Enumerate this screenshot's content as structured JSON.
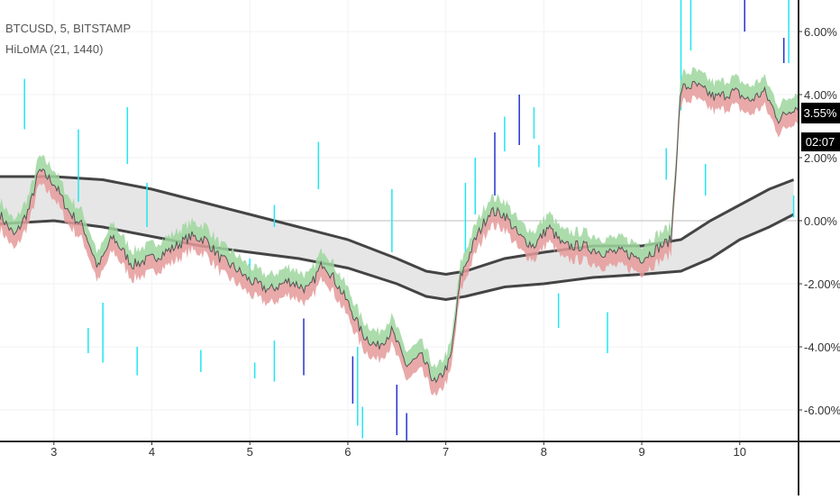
{
  "legend": {
    "symbol_line": "BTCUSD, 5, BITSTAMP",
    "indicator_line": "HiLoMA (21, 1440)"
  },
  "badges": {
    "price_change": "3.55%",
    "countdown": "02:07"
  },
  "colors": {
    "price_line": "#555555",
    "band_upper_fill": "#9ed69e",
    "band_lower_fill": "#e59a9a",
    "long_ma_fill": "#e6e6e6",
    "long_ma_lines": "#444444",
    "spike_cyan": "#22e6f0",
    "spike_blue": "#2233cc",
    "grid": "#f0f2f5",
    "badge_bg": "#000000",
    "badge_text": "#ffffff"
  },
  "chart_data": {
    "type": "line",
    "x_ticks": [
      "3",
      "4",
      "5",
      "6",
      "7",
      "8",
      "9",
      "10"
    ],
    "y_ticks": [
      "6.00%",
      "4.00%",
      "2.00%",
      "0.00%",
      "-2.00%",
      "-4.00%",
      "-6.00%"
    ],
    "y_tick_values": [
      6,
      4,
      2,
      0,
      -2,
      -4,
      -6
    ],
    "x_tick_values": [
      3,
      4,
      5,
      6,
      7,
      8,
      9,
      10
    ],
    "xlim": [
      2.45,
      10.6
    ],
    "ylim": [
      -7.0,
      7.0
    ],
    "series": [
      {
        "role": "price",
        "x": [
          2.45,
          2.6,
          2.75,
          2.85,
          3.0,
          3.15,
          3.3,
          3.45,
          3.6,
          3.8,
          4.0,
          4.2,
          4.4,
          4.55,
          4.7,
          4.85,
          5.0,
          5.2,
          5.4,
          5.6,
          5.75,
          5.85,
          6.0,
          6.15,
          6.3,
          6.45,
          6.6,
          6.75,
          6.9,
          7.05,
          7.15,
          7.3,
          7.45,
          7.6,
          7.75,
          7.9,
          8.05,
          8.2,
          8.4,
          8.6,
          8.8,
          9.0,
          9.2,
          9.3,
          9.4,
          9.55,
          9.75,
          9.95,
          10.1,
          10.25,
          10.4,
          10.55
        ],
        "y": [
          0.2,
          -0.5,
          0.4,
          1.6,
          1.2,
          0.3,
          -0.2,
          -1.5,
          -0.5,
          -1.4,
          -1.2,
          -0.9,
          -0.5,
          -0.6,
          -1.2,
          -1.5,
          -1.9,
          -2.2,
          -1.9,
          -2.2,
          -1.3,
          -1.8,
          -2.6,
          -3.6,
          -4.0,
          -3.5,
          -4.6,
          -4.3,
          -5.2,
          -4.4,
          -1.8,
          -0.6,
          0.3,
          0.2,
          -0.5,
          -0.8,
          -0.2,
          -0.8,
          -0.8,
          -1.0,
          -1.0,
          -1.2,
          -0.8,
          -0.6,
          4.2,
          4.3,
          3.9,
          4.1,
          3.8,
          4.1,
          3.2,
          3.6
        ]
      },
      {
        "role": "long_ma_upper",
        "x": [
          2.45,
          3.0,
          3.5,
          4.0,
          4.5,
          5.0,
          5.5,
          6.0,
          6.5,
          6.8,
          7.0,
          7.2,
          7.6,
          8.0,
          8.5,
          9.0,
          9.4,
          9.7,
          10.0,
          10.3,
          10.55
        ],
        "y": [
          1.4,
          1.4,
          1.3,
          1.0,
          0.6,
          0.2,
          -0.2,
          -0.6,
          -1.2,
          -1.6,
          -1.7,
          -1.6,
          -1.2,
          -1.0,
          -0.8,
          -0.8,
          -0.6,
          0.0,
          0.5,
          1.0,
          1.3
        ]
      },
      {
        "role": "long_ma_lower",
        "x": [
          2.45,
          3.0,
          3.5,
          4.0,
          4.5,
          5.0,
          5.5,
          6.0,
          6.5,
          6.8,
          7.0,
          7.2,
          7.6,
          8.0,
          8.5,
          9.0,
          9.4,
          9.7,
          10.0,
          10.3,
          10.55
        ],
        "y": [
          -0.1,
          0.0,
          -0.2,
          -0.5,
          -0.8,
          -1.0,
          -1.2,
          -1.5,
          -2.0,
          -2.4,
          -2.5,
          -2.4,
          -2.1,
          -2.0,
          -1.8,
          -1.7,
          -1.6,
          -1.2,
          -0.6,
          -0.2,
          0.2
        ]
      }
    ],
    "spikes": [
      {
        "x": 2.7,
        "y0": 4.5,
        "y1": 2.9,
        "color": "cyan"
      },
      {
        "x": 3.25,
        "y0": 2.9,
        "y1": 0.6,
        "color": "cyan"
      },
      {
        "x": 3.75,
        "y0": 3.6,
        "y1": 1.8,
        "color": "cyan"
      },
      {
        "x": 3.95,
        "y0": 1.2,
        "y1": -0.2,
        "color": "cyan"
      },
      {
        "x": 3.5,
        "y0": -2.6,
        "y1": -4.5,
        "color": "cyan"
      },
      {
        "x": 3.35,
        "y0": -3.4,
        "y1": -4.2,
        "color": "cyan"
      },
      {
        "x": 3.85,
        "y0": -4.0,
        "y1": -4.9,
        "color": "cyan"
      },
      {
        "x": 4.5,
        "y0": -4.1,
        "y1": -4.8,
        "color": "cyan"
      },
      {
        "x": 5.25,
        "y0": -3.8,
        "y1": -5.1,
        "color": "cyan"
      },
      {
        "x": 5.05,
        "y0": -4.5,
        "y1": -5.0,
        "color": "cyan"
      },
      {
        "x": 5.55,
        "y0": -3.1,
        "y1": -4.9,
        "color": "blue"
      },
      {
        "x": 5.0,
        "y0": -1.2,
        "y1": -2.0,
        "color": "cyan"
      },
      {
        "x": 5.7,
        "y0": 2.5,
        "y1": 1.0,
        "color": "cyan"
      },
      {
        "x": 5.25,
        "y0": 0.5,
        "y1": -0.2,
        "color": "cyan"
      },
      {
        "x": 6.1,
        "y0": -4.0,
        "y1": -6.5,
        "color": "cyan"
      },
      {
        "x": 6.15,
        "y0": -5.9,
        "y1": -6.9,
        "color": "cyan"
      },
      {
        "x": 6.05,
        "y0": -4.3,
        "y1": -5.8,
        "color": "blue"
      },
      {
        "x": 6.45,
        "y0": 1.0,
        "y1": -1.0,
        "color": "cyan"
      },
      {
        "x": 6.5,
        "y0": -5.2,
        "y1": -6.8,
        "color": "blue"
      },
      {
        "x": 6.6,
        "y0": -6.1,
        "y1": -7.0,
        "color": "blue"
      },
      {
        "x": 7.2,
        "y0": 1.2,
        "y1": -1.0,
        "color": "cyan"
      },
      {
        "x": 7.3,
        "y0": 2.0,
        "y1": 0.2,
        "color": "cyan"
      },
      {
        "x": 7.5,
        "y0": 2.8,
        "y1": 0.8,
        "color": "blue"
      },
      {
        "x": 7.6,
        "y0": 3.3,
        "y1": 2.2,
        "color": "cyan"
      },
      {
        "x": 7.75,
        "y0": 4.0,
        "y1": 2.4,
        "color": "blue"
      },
      {
        "x": 7.9,
        "y0": 3.6,
        "y1": 2.6,
        "color": "cyan"
      },
      {
        "x": 7.95,
        "y0": 2.4,
        "y1": 1.7,
        "color": "cyan"
      },
      {
        "x": 8.15,
        "y0": -2.3,
        "y1": -3.4,
        "color": "cyan"
      },
      {
        "x": 8.65,
        "y0": -2.9,
        "y1": -4.2,
        "color": "cyan"
      },
      {
        "x": 9.25,
        "y0": 2.3,
        "y1": 1.3,
        "color": "cyan"
      },
      {
        "x": 9.4,
        "y0": 7.0,
        "y1": 3.5,
        "color": "cyan"
      },
      {
        "x": 9.5,
        "y0": 7.0,
        "y1": 5.4,
        "color": "cyan"
      },
      {
        "x": 9.65,
        "y0": 1.8,
        "y1": 0.8,
        "color": "cyan"
      },
      {
        "x": 10.05,
        "y0": 7.0,
        "y1": 6.0,
        "color": "blue"
      },
      {
        "x": 10.5,
        "y0": 7.0,
        "y1": 5.0,
        "color": "cyan"
      },
      {
        "x": 10.45,
        "y0": 5.8,
        "y1": 5.0,
        "color": "blue"
      },
      {
        "x": 10.55,
        "y0": 0.8,
        "y1": 0.1,
        "color": "cyan"
      }
    ]
  }
}
